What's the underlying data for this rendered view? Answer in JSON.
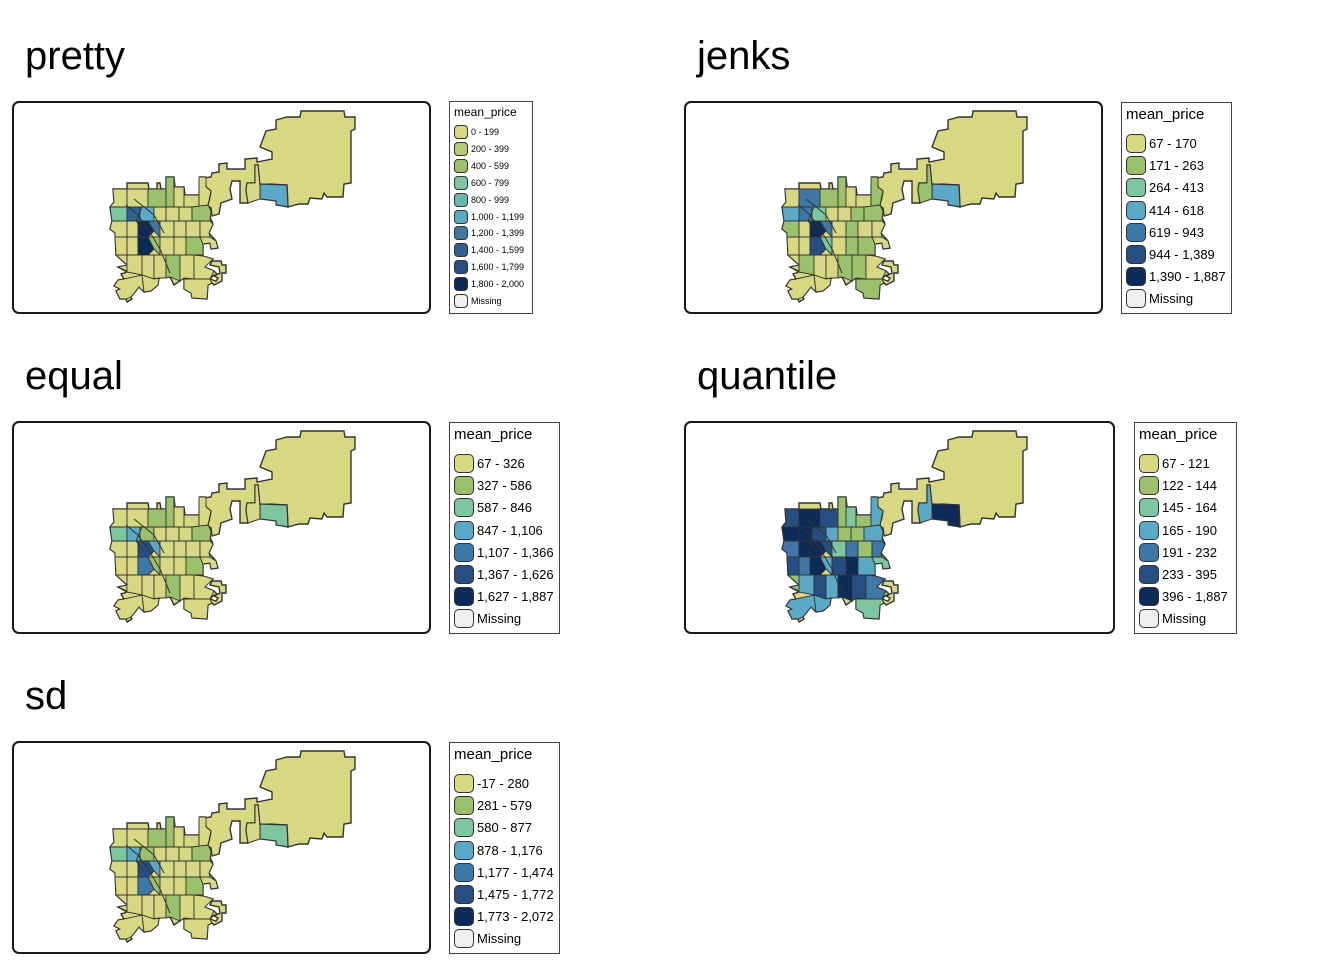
{
  "legend_title": "mean_price",
  "colors": [
    "#d9d882",
    "#9cc16c",
    "#7dc6a0",
    "#5aa9c6",
    "#3d78a6",
    "#254f82",
    "#0d2b57"
  ],
  "missing_color": "#f0f0f0",
  "pretty_colors": [
    "#d9d882",
    "#b3cc76",
    "#9cc16c",
    "#7dc6a0",
    "#66b9b5",
    "#5aa9c6",
    "#3d78a6",
    "#2f5f93",
    "#254f82",
    "#0d2b57"
  ],
  "panels": [
    {
      "key": "pretty",
      "title": "pretty",
      "labels": [
        "0 - 199",
        "200 - 399",
        "400 - 599",
        "600 - 799",
        "800 - 999",
        "1,000 - 1,199",
        "1,200 - 1,399",
        "1,400 - 1,599",
        "1,600 - 1,799",
        "1,800 - 2,000",
        "Missing"
      ]
    },
    {
      "key": "jenks",
      "title": "jenks",
      "labels": [
        "67 - 170",
        "171 - 263",
        "264 - 413",
        "414 - 618",
        "619 - 943",
        "944 - 1,389",
        "1,390 - 1,887",
        "Missing"
      ]
    },
    {
      "key": "equal",
      "title": "equal",
      "labels": [
        "67 - 326",
        "327 - 586",
        "587 - 846",
        "847 - 1,106",
        "1,107 - 1,366",
        "1,367 - 1,626",
        "1,627 - 1,887",
        "Missing"
      ]
    },
    {
      "key": "quantile",
      "title": "quantile",
      "labels": [
        "67 - 121",
        "122 - 144",
        "145 - 164",
        "165 - 190",
        "191 - 232",
        "233 - 395",
        "396 - 1,887",
        "Missing"
      ]
    },
    {
      "key": "sd",
      "title": "sd",
      "labels": [
        "-17 - 280",
        "281 - 579",
        "580 - 877",
        "878 - 1,176",
        "1,177 - 1,474",
        "1,475 - 1,772",
        "1,773 - 2,072",
        "Missing"
      ]
    }
  ]
}
